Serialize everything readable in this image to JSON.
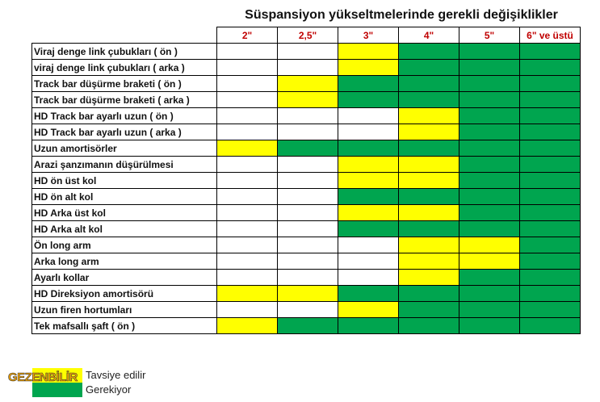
{
  "title": "Süspansiyon yükseltmelerinde gerekli değişiklikler",
  "columns": [
    "2\"",
    "2,5\"",
    "3\"",
    "4\"",
    "5\"",
    "6\" ve üstü"
  ],
  "colors": {
    "W": "#ffffff",
    "Y": "#ffff00",
    "G": "#00a54f",
    "header_text": "#c00000"
  },
  "rows": [
    {
      "label": "Viraj denge link çubukları  ( ön )",
      "cells": [
        "W",
        "W",
        "Y",
        "G",
        "G",
        "G"
      ]
    },
    {
      "label": "viraj denge link çubukları  ( arka )",
      "cells": [
        "W",
        "W",
        "Y",
        "G",
        "G",
        "G"
      ]
    },
    {
      "label": "Track bar düşürme braketi  ( ön )",
      "cells": [
        "W",
        "Y",
        "G",
        "G",
        "G",
        "G"
      ]
    },
    {
      "label": "Track bar düşürme braketi  ( arka )",
      "cells": [
        "W",
        "Y",
        "G",
        "G",
        "G",
        "G"
      ]
    },
    {
      "label": "HD Track bar ayarlı uzun ( ön )",
      "cells": [
        "W",
        "W",
        "W",
        "Y",
        "G",
        "G"
      ]
    },
    {
      "label": "HD Track bar ayarlı uzun ( arka )",
      "cells": [
        "W",
        "W",
        "W",
        "Y",
        "G",
        "G"
      ]
    },
    {
      "label": "Uzun amortisörler",
      "cells": [
        "Y",
        "G",
        "G",
        "G",
        "G",
        "G"
      ]
    },
    {
      "label": "Arazi şanzımanın düşürülmesi",
      "cells": [
        "W",
        "W",
        "Y",
        "Y",
        "G",
        "G"
      ]
    },
    {
      "label": "HD ön üst kol",
      "cells": [
        "W",
        "W",
        "Y",
        "Y",
        "G",
        "G"
      ]
    },
    {
      "label": "HD ön alt kol",
      "cells": [
        "W",
        "W",
        "G",
        "G",
        "G",
        "G"
      ]
    },
    {
      "label": "HD Arka üst kol",
      "cells": [
        "W",
        "W",
        "Y",
        "Y",
        "G",
        "G"
      ]
    },
    {
      "label": "HD  Arka alt kol",
      "cells": [
        "W",
        "W",
        "G",
        "G",
        "G",
        "G"
      ]
    },
    {
      "label": "Ön long arm",
      "cells": [
        "W",
        "W",
        "W",
        "Y",
        "Y",
        "G"
      ]
    },
    {
      "label": "Arka long arm",
      "cells": [
        "W",
        "W",
        "W",
        "Y",
        "Y",
        "G"
      ]
    },
    {
      "label": "Ayarlı kollar",
      "cells": [
        "W",
        "W",
        "W",
        "Y",
        "G",
        "G"
      ]
    },
    {
      "label": "HD Direksiyon amortisörü",
      "cells": [
        "Y",
        "Y",
        "G",
        "G",
        "G",
        "G"
      ]
    },
    {
      "label": "Uzun firen hortumları",
      "cells": [
        "W",
        "W",
        "Y",
        "G",
        "G",
        "G"
      ]
    },
    {
      "label": "Tek mafsallı şaft  ( ön )",
      "cells": [
        "Y",
        "G",
        "G",
        "G",
        "G",
        "G"
      ]
    }
  ],
  "legend": {
    "recommended": "Tavsiye edilir",
    "required": "Gerekiyor"
  },
  "logo": "GEZENBİLİR"
}
